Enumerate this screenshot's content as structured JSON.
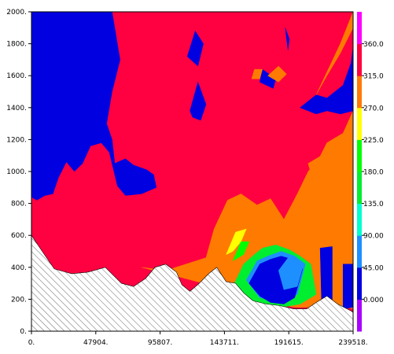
{
  "colors": {
    "background": "#ffffff",
    "axis": "#000000",
    "hatch": "#404040",
    "scale": [
      "#aa00ff",
      "#0000e0",
      "#1e8fff",
      "#00ffd0",
      "#00ee30",
      "#00ff00",
      "#ffff00",
      "#ff7a00",
      "#ff0040",
      "#ff00ff"
    ]
  },
  "chart_data": {
    "type": "heatmap",
    "title": "",
    "xlabel": "",
    "ylabel": "",
    "xlim": [
      0,
      239518
    ],
    "ylim": [
      0,
      2000
    ],
    "x_ticks": [
      "0.",
      "47904.",
      "95807.",
      "143711.",
      "191615.",
      "239518."
    ],
    "y_ticks": [
      "0.",
      "200.",
      "400.",
      "600.",
      "800.",
      "1000.",
      "1200.",
      "1400.",
      "1600.",
      "1800.",
      "2000."
    ],
    "colorbar": {
      "labels": [
        "0.000",
        "45.00",
        "90.00",
        "135.0",
        "180.0",
        "225.0",
        "270.0",
        "315.0",
        "360.0"
      ],
      "range": [
        -45,
        405
      ]
    },
    "background_value": 340,
    "terrain": {
      "x": [
        0,
        8000,
        17000,
        30000,
        42000,
        55000,
        67000,
        76000,
        85000,
        92000,
        100000,
        108000,
        112000,
        118000,
        125000,
        132000,
        138000,
        145000,
        152000,
        158000,
        165000,
        175000,
        185000,
        195000,
        205000,
        212000,
        220000,
        228000,
        235000,
        239518
      ],
      "y": [
        600,
        500,
        390,
        360,
        370,
        400,
        300,
        280,
        330,
        400,
        420,
        370,
        290,
        250,
        300,
        360,
        400,
        310,
        300,
        240,
        190,
        170,
        160,
        140,
        140,
        180,
        220,
        170,
        140,
        120
      ]
    },
    "regions": [
      {
        "value": 10,
        "x": [
          0,
          0,
          60000,
          66000,
          60000,
          56000,
          60000,
          62000,
          70000,
          76000,
          86000,
          91000,
          93000,
          82000,
          70000,
          64000,
          58000,
          52000,
          44000,
          38000,
          32000,
          26000,
          20000,
          16000,
          10000,
          4000
        ],
        "y": [
          840,
          2000,
          2000,
          1700,
          1500,
          1300,
          1200,
          1050,
          1080,
          1040,
          1010,
          980,
          900,
          860,
          850,
          910,
          1120,
          1180,
          1160,
          1050,
          1000,
          1060,
          960,
          860,
          850,
          820
        ]
      },
      {
        "value": 10,
        "x": [
          200000,
          212000,
          220000,
          232000,
          238000,
          239518,
          239518,
          230000,
          220000,
          212000
        ],
        "y": [
          1400,
          1480,
          1460,
          1540,
          1680,
          1780,
          1380,
          1360,
          1380,
          1360
        ]
      },
      {
        "value": 10,
        "x": [
          118000,
          124000,
          130000,
          126000,
          120000
        ],
        "y": [
          1380,
          1560,
          1420,
          1320,
          1340
        ]
      },
      {
        "value": 10,
        "x": [
          116000,
          122000,
          128000,
          124000
        ],
        "y": [
          1720,
          1880,
          1800,
          1660
        ]
      },
      {
        "value": 10,
        "x": [
          172000,
          182000,
          180000,
          170000
        ],
        "y": [
          1640,
          1580,
          1520,
          1560
        ]
      },
      {
        "value": 10,
        "x": [
          189000,
          192000,
          191000
        ],
        "y": [
          1900,
          1830,
          1760
        ]
      },
      {
        "value": 290,
        "x": [
          82000,
          100000,
          130000,
          136000,
          146000,
          156000,
          168000,
          178000,
          188000,
          198000,
          206000,
          214000,
          220000,
          226000,
          232000,
          239518,
          239518,
          228000,
          214000,
          196000,
          184000,
          170000,
          150000,
          128000,
          110000
        ],
        "y": [
          400,
          380,
          460,
          640,
          820,
          860,
          790,
          830,
          700,
          860,
          1000,
          1080,
          1180,
          1210,
          1240,
          1380,
          140,
          160,
          150,
          150,
          170,
          190,
          250,
          300,
          340
        ]
      },
      {
        "value": 290,
        "x": [
          206000,
          216000,
          224000,
          232000,
          239518,
          239518,
          230000,
          218000
        ],
        "y": [
          1050,
          1100,
          1020,
          980,
          1000,
          700,
          640,
          700
        ]
      },
      {
        "value": 290,
        "x": [
          212000,
          220000,
          230000,
          239518,
          239518,
          230000
        ],
        "y": [
          1480,
          1600,
          1740,
          1900,
          2000,
          1800
        ]
      },
      {
        "value": 290,
        "x": [
          176000,
          184000,
          190000,
          184000
        ],
        "y": [
          1600,
          1660,
          1610,
          1560
        ]
      },
      {
        "value": 290,
        "x": [
          166000,
          172000,
          170000,
          164000
        ],
        "y": [
          1640,
          1640,
          1580,
          1580
        ]
      },
      {
        "value": 150,
        "x": [
          150000,
          158000,
          166000,
          172000,
          182000,
          192000,
          200000,
          208000,
          212000,
          200000,
          190000,
          178000,
          166000,
          158000
        ],
        "y": [
          280,
          420,
          480,
          520,
          540,
          510,
          470,
          420,
          230,
          170,
          155,
          160,
          180,
          230
        ]
      },
      {
        "value": 60,
        "x": [
          160000,
          168000,
          176000,
          186000,
          196000,
          204000,
          198000,
          184000,
          170000
        ],
        "y": [
          320,
          440,
          470,
          500,
          470,
          420,
          230,
          185,
          210
        ]
      },
      {
        "value": 12,
        "x": [
          162000,
          170000,
          178000,
          186000,
          194000,
          202000,
          196000,
          188000,
          178000,
          170000
        ],
        "y": [
          300,
          420,
          450,
          470,
          450,
          390,
          210,
          170,
          180,
          220
        ]
      },
      {
        "value": 60,
        "x": [
          184000,
          192000,
          202000,
          198000,
          188000
        ],
        "y": [
          380,
          470,
          400,
          280,
          260
        ]
      },
      {
        "value": 12,
        "x": [
          215000,
          224000,
          224000,
          216000
        ],
        "y": [
          520,
          530,
          190,
          200
        ]
      },
      {
        "value": 12,
        "x": [
          232000,
          239518,
          239518,
          232000
        ],
        "y": [
          420,
          420,
          150,
          140
        ]
      },
      {
        "value": 230,
        "x": [
          145000,
          152000,
          160000,
          156000,
          150000
        ],
        "y": [
          480,
          620,
          640,
          560,
          500
        ]
      },
      {
        "value": 180,
        "x": [
          150000,
          156000,
          162000,
          158000,
          152000
        ],
        "y": [
          440,
          560,
          560,
          480,
          450
        ]
      }
    ]
  }
}
